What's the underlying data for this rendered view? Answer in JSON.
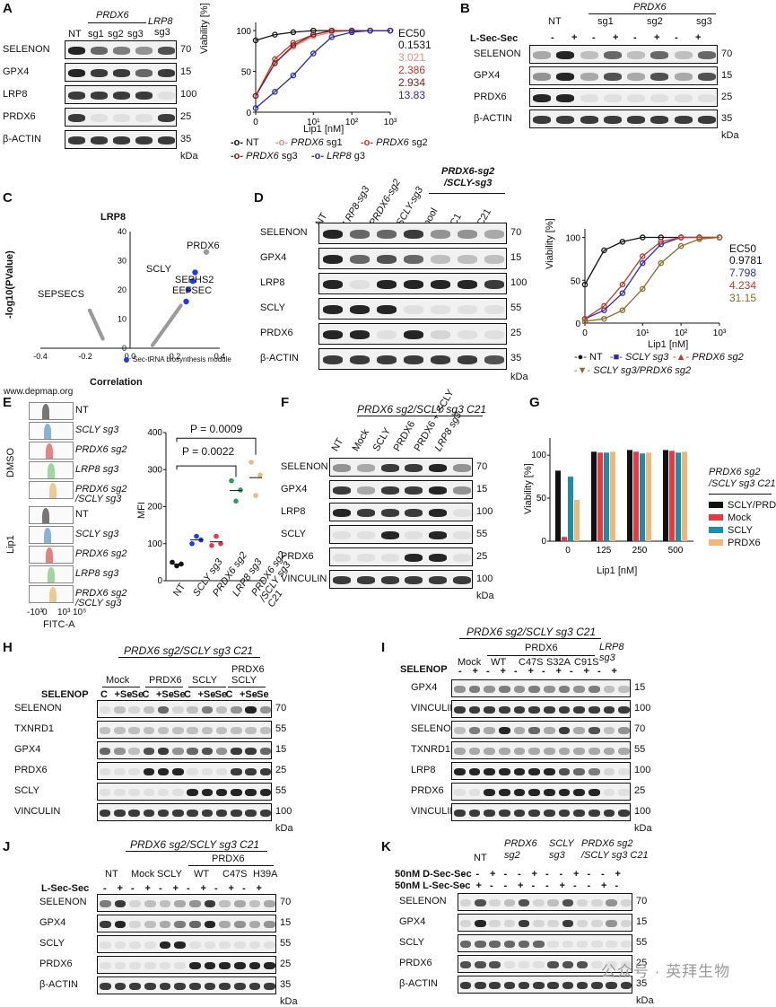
{
  "panels": {
    "A": {
      "letter": "A",
      "group_label": "PRDX6",
      "lrp8_label": "LRP8",
      "lrp8_sub": "sg3",
      "lanes": [
        "NT",
        "sg1",
        "sg2",
        "sg3"
      ],
      "rows": [
        "SELENON",
        "GPX4",
        "LRP8",
        "PRDX6",
        "β-ACTIN"
      ],
      "markers": [
        "70",
        "15",
        "100",
        "25",
        "35"
      ],
      "unit": "kDa"
    },
    "A_chart": {
      "ylabel": "Viability [%]",
      "xlabel": "Lip1 [nM]",
      "ec_header": "EC50",
      "ec_values": [
        {
          "v": "0.1531",
          "color": "#111111"
        },
        {
          "v": "3.021",
          "color": "#e88b86"
        },
        {
          "v": "2.386",
          "color": "#c0392b"
        },
        {
          "v": "2.934",
          "color": "#7b1d1d"
        },
        {
          "v": "13.83",
          "color": "#2b2bb0"
        }
      ],
      "legend": [
        {
          "pre": "",
          "it": "",
          "post": "NT"
        },
        {
          "pre": "",
          "it": "PRDX6",
          "post": " sg1"
        },
        {
          "pre": "",
          "it": "PRDX6",
          "post": " sg2"
        },
        {
          "pre": "",
          "it": "PRDX6",
          "post": " sg3"
        },
        {
          "pre": "",
          "it": "LRP8",
          "post": " g3"
        }
      ],
      "yticks": [
        "0",
        "50",
        "100"
      ],
      "xticks": [
        "0",
        "10¹",
        "10²",
        "10³"
      ]
    },
    "B": {
      "letter": "B",
      "group_label": "PRDX6",
      "lanes": [
        "NT",
        "sg1",
        "sg2",
        "sg3"
      ],
      "treat_label": "L-Sec-Sec",
      "signs": [
        "-",
        "+",
        "-",
        "+",
        "-",
        "+",
        "-",
        "+"
      ],
      "rows": [
        "SELENON",
        "GPX4",
        "PRDX6",
        "β-ACTIN"
      ],
      "markers": [
        "70",
        "15",
        "25",
        "35"
      ],
      "unit": "kDa"
    },
    "C": {
      "letter": "C",
      "title": "LRP8",
      "ylabel": "-log10(PValue)",
      "xlabel": "Correlation",
      "genes": [
        "PRDX6",
        "SCLY",
        "SEPHS2",
        "EEFSEC",
        "SEPSECS"
      ],
      "module_label": "Sec-tRNA biosynthesis module",
      "source": "www.depmap.org",
      "yticks": [
        "0",
        "10",
        "20",
        "30",
        "40"
      ],
      "xticks": [
        "-0.4",
        "-0.2",
        "0.0",
        "0.2",
        "0.4"
      ]
    },
    "D": {
      "letter": "D",
      "lanes": [
        "NT",
        "LRP8-sg3",
        "PRDX6-sg2",
        "SCLY-sg3",
        "pool",
        "C1",
        "C21"
      ],
      "group_label": "PRDX6-sg2\n/SCLY-sg3",
      "rows": [
        "SELENON",
        "GPX4",
        "LRP8",
        "SCLY",
        "PRDX6",
        "β-ACTIN"
      ],
      "markers": [
        "70",
        "15",
        "100",
        "55",
        "25",
        "35"
      ],
      "unit": "kDa"
    },
    "D_chart": {
      "ylabel": "Viability [%]",
      "xlabel": "Lip1 [nM]",
      "ec_header": "EC50",
      "ec_values": [
        {
          "v": "0.9781",
          "color": "#111111"
        },
        {
          "v": "7.798",
          "color": "#2b2bb0"
        },
        {
          "v": "4.234",
          "color": "#c0392b"
        },
        {
          "v": "31.15",
          "color": "#8a6d2b"
        }
      ],
      "legend": [
        {
          "t": "NT"
        },
        {
          "t": "SCLY sg3"
        },
        {
          "t": "PRDX6 sg2"
        },
        {
          "t": "SCLY sg3/PRDX6 sg2"
        }
      ],
      "yticks": [
        "0",
        "50",
        "100"
      ],
      "xticks": [
        "0",
        "10¹",
        "10²",
        "10³"
      ]
    },
    "E": {
      "letter": "E",
      "dmso_label": "DMSO",
      "lip_label": "Lip1",
      "hist_labels": [
        "NT",
        "SCLY sg3",
        "PRDX6 sg2",
        "LRP8 sg3",
        "PRDX6 sg2",
        "/SCLY sg3"
      ],
      "xaxis": "FITC-A",
      "xticks": [
        "-10³",
        "0",
        "10³",
        "10⁵"
      ],
      "ylabel": "MFI",
      "p1": "P = 0.0009",
      "p2": "P = 0.0022",
      "yticks": [
        "0",
        "100",
        "200",
        "300",
        "400"
      ],
      "cats": [
        "NT",
        "SCLY sg3",
        "PRDX6 sg2",
        "LRP8 sg3",
        "PRDX6 sg2 /SCLY sg3 C21"
      ]
    },
    "F": {
      "letter": "F",
      "title": "PRDX6 sg2/SCLY sg3 C21",
      "lanes": [
        "NT",
        "Mock",
        "SCLY",
        "PRDX6",
        "PRDX6 + SCLY",
        "LRP8 sg3"
      ],
      "rows": [
        "SELENON",
        "GPX4",
        "LRP8",
        "SCLY",
        "PRDX6",
        "VINCULIN"
      ],
      "markers": [
        "70",
        "15",
        "100",
        "55",
        "25",
        "100"
      ],
      "unit": "kDa"
    },
    "G": {
      "letter": "G",
      "ylabel": "Viability [%]",
      "xlabel": "Lip1 [nM]",
      "legend_title": "PRDX6 sg2\n/SCLY sg3 C21",
      "legend": [
        {
          "t": "SCLY/PRDX6",
          "c": "#111111"
        },
        {
          "t": "Mock",
          "c": "#e63946"
        },
        {
          "t": "SCLY",
          "c": "#1b8fa8"
        },
        {
          "t": "PRDX6",
          "c": "#f1b77a"
        }
      ],
      "yticks": [
        "0",
        "50",
        "100"
      ],
      "xticks": [
        "0",
        "125",
        "250",
        "500"
      ]
    },
    "H": {
      "letter": "H",
      "title": "PRDX6 sg2/SCLY sg3 C21",
      "groups": [
        "Mock",
        "PRDX6",
        "SCLY",
        "PRDX6 SCLY"
      ],
      "treat_label": "SELENOP",
      "conds": [
        "C",
        "+Se",
        "-Se",
        "C",
        "+Se",
        "-Se",
        "C",
        "+Se",
        "-Se",
        "C",
        "+Se",
        "-Se"
      ],
      "rows": [
        "SELENON",
        "TXNRD1",
        "GPX4",
        "PRDX6",
        "SCLY",
        "VINCULIN"
      ],
      "markers": [
        "70",
        "55",
        "15",
        "25",
        "55",
        "100"
      ],
      "unit": "kDa"
    },
    "I": {
      "letter": "I",
      "title": "PRDX6 sg2/SCLY sg3 C21",
      "sub": "PRDX6",
      "groups": [
        "Mock",
        "WT",
        "C47S",
        "S32A",
        "C91S",
        "LRP8 sg3"
      ],
      "treat_label": "SELENOP",
      "signs": [
        "-",
        "+",
        "-",
        "+",
        "-",
        "+",
        "-",
        "+",
        "-",
        "+",
        "-",
        "+"
      ],
      "rows": [
        "GPX4",
        "VINCULIN",
        "SELENON",
        "TXNRD1",
        "LRP8",
        "PRDX6",
        "VINCULIN"
      ],
      "markers": [
        "15",
        "100",
        "70",
        "55",
        "100",
        "25",
        "100"
      ],
      "unit": "kDa"
    },
    "J": {
      "letter": "J",
      "title": "PRDX6 sg2/SCLY sg3 C21",
      "sub": "PRDX6",
      "groups": [
        "NT",
        "Mock",
        "SCLY",
        "WT",
        "C47S",
        "H39A"
      ],
      "treat_label": "L-Sec-Sec",
      "signs": [
        "-",
        "+",
        "-",
        "+",
        "-",
        "+",
        "-",
        "+",
        "-",
        "+",
        "-",
        "+"
      ],
      "rows": [
        "SELENON",
        "GPX4",
        "SCLY",
        "PRDX6",
        "β-ACTIN"
      ],
      "markers": [
        "70",
        "15",
        "55",
        "25",
        "35"
      ],
      "unit": "kDa"
    },
    "K": {
      "letter": "K",
      "groups": [
        "NT",
        "PRDX6 sg2",
        "SCLY sg3",
        "PRDX6 sg2 /SCLY sg3 C21"
      ],
      "treat1": "50nM D-Sec-Sec",
      "treat2": "50nM L-Sec-Sec",
      "rows": [
        "SELENON",
        "GPX4",
        "SCLY",
        "PRDX6",
        "β-ACTIN"
      ],
      "markers": [
        "70",
        "15",
        "55",
        "25",
        "35"
      ],
      "unit": "kDa",
      "watermark": "公众号 · 英拜生物"
    }
  },
  "chart_data": [
    {
      "type": "line",
      "panel": "A",
      "title": "",
      "xlabel": "Lip1 [nM]",
      "ylabel": "Viability [%]",
      "xscale": "log",
      "ylim": [
        0,
        110
      ],
      "x": [
        0,
        1,
        3,
        10,
        30,
        100,
        300,
        1000
      ],
      "series": [
        {
          "name": "NT",
          "values": [
            88,
            95,
            98,
            100,
            100,
            100,
            100,
            100
          ]
        },
        {
          "name": "PRDX6 sg1",
          "values": [
            20,
            60,
            80,
            93,
            98,
            100,
            100,
            100
          ]
        },
        {
          "name": "PRDX6 sg2",
          "values": [
            20,
            65,
            85,
            95,
            100,
            100,
            100,
            100
          ]
        },
        {
          "name": "PRDX6 sg3",
          "values": [
            20,
            60,
            82,
            95,
            100,
            100,
            100,
            100
          ]
        },
        {
          "name": "LRP8 g3",
          "values": [
            5,
            25,
            45,
            72,
            92,
            98,
            100,
            100
          ]
        }
      ]
    },
    {
      "type": "scatter",
      "panel": "C",
      "title": "LRP8",
      "xlabel": "Correlation",
      "ylabel": "-log10(PValue)",
      "xlim": [
        -0.4,
        0.4
      ],
      "ylim": [
        0,
        40
      ],
      "labeled_points": [
        {
          "name": "PRDX6",
          "x": 0.34,
          "y": 33
        },
        {
          "name": "SCLY",
          "x": 0.29,
          "y": 26
        },
        {
          "name": "SEPHS2",
          "x": 0.28,
          "y": 23
        },
        {
          "name": "EEFSEC",
          "x": 0.26,
          "y": 20
        },
        {
          "name": "SEPSECS",
          "x": 0.25,
          "y": 16
        }
      ]
    },
    {
      "type": "line",
      "panel": "D",
      "title": "",
      "xlabel": "Lip1 [nM]",
      "ylabel": "Viability [%]",
      "xscale": "log",
      "ylim": [
        0,
        110
      ],
      "x": [
        0,
        1,
        3,
        10,
        30,
        100,
        300,
        1000
      ],
      "series": [
        {
          "name": "NT",
          "values": [
            45,
            85,
            95,
            100,
            100,
            100,
            100,
            100
          ]
        },
        {
          "name": "SCLY sg3",
          "values": [
            5,
            15,
            35,
            70,
            92,
            100,
            100,
            100
          ]
        },
        {
          "name": "PRDX6 sg2",
          "values": [
            5,
            20,
            45,
            78,
            95,
            100,
            100,
            100
          ]
        },
        {
          "name": "SCLY sg3/PRDX6 sg2",
          "values": [
            2,
            5,
            15,
            40,
            70,
            90,
            98,
            100
          ]
        }
      ]
    },
    {
      "type": "scatter",
      "panel": "E",
      "title": "",
      "xlabel": "",
      "ylabel": "MFI",
      "ylim": [
        0,
        400
      ],
      "categories": [
        "NT",
        "SCLY sg3",
        "PRDX6 sg2",
        "LRP8 sg3",
        "PRDX6 sg2 /SCLY sg3 C21"
      ],
      "series": [
        {
          "values": [
            [
              50,
              40,
              45
            ],
            [
              100,
              120,
              110
            ],
            [
              95,
              120,
              100
            ],
            [
              270,
              215,
              245
            ],
            [
              320,
              230,
              285
            ]
          ]
        }
      ],
      "annotations": [
        "P = 0.0009",
        "P = 0.0022"
      ]
    },
    {
      "type": "bar",
      "panel": "G",
      "title": "",
      "xlabel": "Lip1 [nM]",
      "ylabel": "Viability [%]",
      "ylim": [
        0,
        120
      ],
      "categories": [
        "0",
        "125",
        "250",
        "500"
      ],
      "series": [
        {
          "name": "SCLY/PRDX6",
          "values": [
            82,
            104,
            106,
            106
          ]
        },
        {
          "name": "Mock",
          "values": [
            5,
            103,
            104,
            105
          ]
        },
        {
          "name": "SCLY",
          "values": [
            75,
            103,
            102,
            103
          ]
        },
        {
          "name": "PRDX6",
          "values": [
            48,
            104,
            103,
            104
          ]
        }
      ]
    }
  ]
}
